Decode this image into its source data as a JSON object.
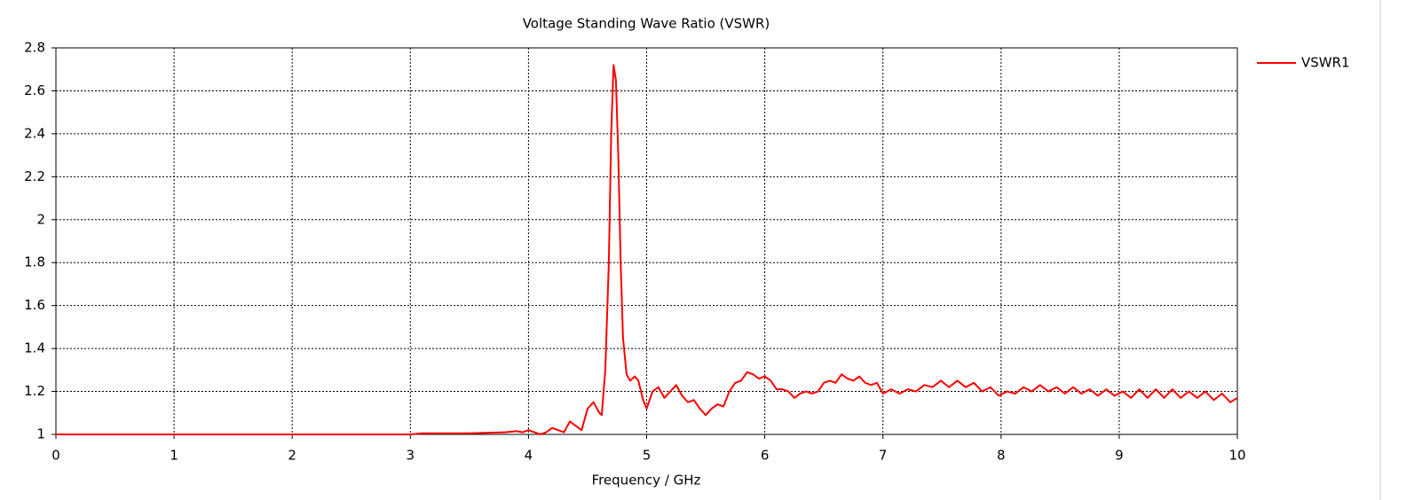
{
  "chart_data": {
    "type": "line",
    "title": "Voltage Standing Wave Ratio (VSWR)",
    "x_label": "Frequency / GHz",
    "xlim": [
      0,
      10
    ],
    "xticks": [
      0,
      1,
      2,
      3,
      4,
      5,
      6,
      7,
      8,
      9,
      10
    ],
    "ylim": [
      1,
      2.8
    ],
    "yticks": [
      1,
      1.2,
      1.4,
      1.6,
      1.8,
      2,
      2.2,
      2.4,
      2.6,
      2.8
    ],
    "grid": true,
    "legend": "right",
    "series": [
      {
        "name": "VSWR1",
        "color": "#ff0000",
        "x": [
          0,
          1,
          2,
          3,
          3.1,
          3.5,
          3.7,
          3.8,
          3.9,
          3.95,
          4.0,
          4.05,
          4.1,
          4.15,
          4.2,
          4.25,
          4.3,
          4.35,
          4.4,
          4.45,
          4.5,
          4.55,
          4.6,
          4.62,
          4.65,
          4.68,
          4.7,
          4.72,
          4.74,
          4.76,
          4.78,
          4.8,
          4.83,
          4.86,
          4.9,
          4.93,
          4.97,
          5.0,
          5.05,
          5.1,
          5.15,
          5.2,
          5.25,
          5.3,
          5.35,
          5.4,
          5.45,
          5.5,
          5.55,
          5.6,
          5.65,
          5.7,
          5.75,
          5.8,
          5.85,
          5.9,
          5.95,
          6.0,
          6.05,
          6.1,
          6.15,
          6.2,
          6.25,
          6.3,
          6.35,
          6.4,
          6.45,
          6.5,
          6.55,
          6.6,
          6.65,
          6.7,
          6.75,
          6.8,
          6.85,
          6.9,
          6.95,
          7.0,
          7.07,
          7.14,
          7.21,
          7.28,
          7.35,
          7.42,
          7.49,
          7.56,
          7.63,
          7.7,
          7.77,
          7.84,
          7.91,
          7.98,
          8.05,
          8.12,
          8.19,
          8.26,
          8.33,
          8.4,
          8.47,
          8.54,
          8.61,
          8.68,
          8.75,
          8.82,
          8.89,
          8.96,
          9.03,
          9.1,
          9.17,
          9.24,
          9.31,
          9.38,
          9.45,
          9.52,
          9.59,
          9.66,
          9.73,
          9.8,
          9.87,
          9.94,
          10
        ],
        "values": [
          1.0,
          1.0,
          1.0,
          1.0,
          1.005,
          1.005,
          1.008,
          1.01,
          1.015,
          1.01,
          1.02,
          1.01,
          1.0,
          1.01,
          1.03,
          1.02,
          1.01,
          1.06,
          1.04,
          1.02,
          1.12,
          1.15,
          1.1,
          1.09,
          1.3,
          1.8,
          2.4,
          2.72,
          2.65,
          2.3,
          1.8,
          1.45,
          1.28,
          1.25,
          1.27,
          1.25,
          1.16,
          1.12,
          1.2,
          1.22,
          1.17,
          1.2,
          1.23,
          1.18,
          1.15,
          1.16,
          1.12,
          1.09,
          1.12,
          1.14,
          1.13,
          1.2,
          1.24,
          1.25,
          1.29,
          1.28,
          1.26,
          1.27,
          1.25,
          1.21,
          1.21,
          1.2,
          1.17,
          1.19,
          1.2,
          1.19,
          1.2,
          1.24,
          1.25,
          1.24,
          1.28,
          1.26,
          1.25,
          1.27,
          1.24,
          1.23,
          1.24,
          1.19,
          1.21,
          1.19,
          1.21,
          1.2,
          1.23,
          1.22,
          1.25,
          1.22,
          1.25,
          1.22,
          1.24,
          1.2,
          1.22,
          1.18,
          1.2,
          1.19,
          1.22,
          1.2,
          1.23,
          1.2,
          1.22,
          1.19,
          1.22,
          1.19,
          1.21,
          1.18,
          1.21,
          1.18,
          1.2,
          1.17,
          1.21,
          1.17,
          1.21,
          1.17,
          1.21,
          1.17,
          1.2,
          1.17,
          1.2,
          1.16,
          1.19,
          1.15,
          1.17
        ]
      }
    ]
  }
}
